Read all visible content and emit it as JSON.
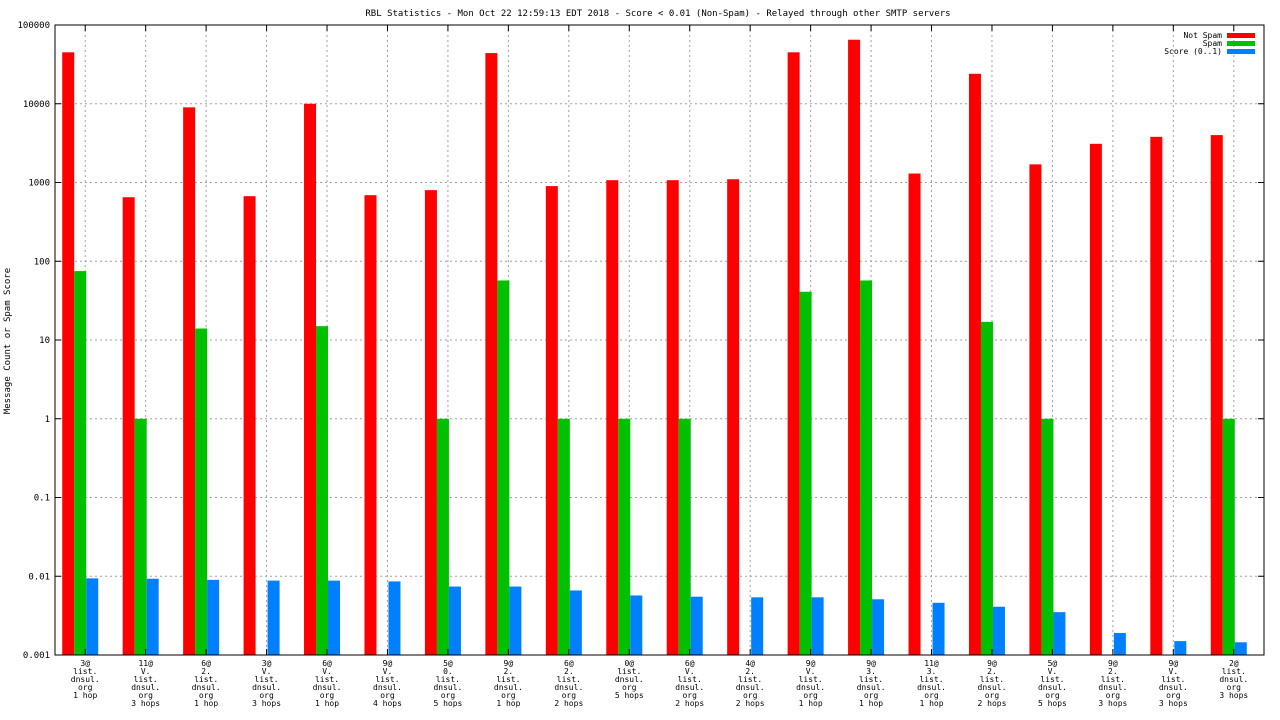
{
  "chart_data": {
    "type": "bar",
    "title": "RBL Statistics - Mon Oct 22 12:59:13 EDT 2018 - Score < 0.01 (Non-Spam) - Relayed through other SMTP servers",
    "xlabel": "",
    "ylabel": "Message Count or Spam Score",
    "y_scale": "log",
    "ylim": [
      0.001,
      100000
    ],
    "y_ticks": [
      "0.001",
      "0.01",
      "0.1",
      "1",
      "10",
      "100",
      "1000",
      "10000",
      "100000"
    ],
    "grid": true,
    "legend_position": "top-right",
    "categories": [
      [
        "3@",
        "list.",
        "dnsul.",
        "org",
        "1 hop"
      ],
      [
        "11@",
        "V.",
        "list.",
        "dnsul.",
        "org",
        "3 hops"
      ],
      [
        "6@",
        "2.",
        "list.",
        "dnsul.",
        "org",
        "1 hop"
      ],
      [
        "3@",
        "V.",
        "list.",
        "dnsul.",
        "org",
        "3 hops"
      ],
      [
        "6@",
        "V.",
        "list.",
        "dnsul.",
        "org",
        "1 hop"
      ],
      [
        "9@",
        "V.",
        "list.",
        "dnsul.",
        "org",
        "4 hops"
      ],
      [
        "5@",
        "0.",
        "list.",
        "dnsul.",
        "org",
        "5 hops"
      ],
      [
        "9@",
        "2.",
        "list.",
        "dnsul.",
        "org",
        "1 hop"
      ],
      [
        "6@",
        "2.",
        "list.",
        "dnsul.",
        "org",
        "2 hops"
      ],
      [
        "0@",
        "list.",
        "dnsul.",
        "org",
        "5 hops"
      ],
      [
        "6@",
        "V.",
        "list.",
        "dnsul.",
        "org",
        "2 hops"
      ],
      [
        "4@",
        "2.",
        "list.",
        "dnsul.",
        "org",
        "2 hops"
      ],
      [
        "9@",
        "V.",
        "list.",
        "dnsul.",
        "org",
        "1 hop"
      ],
      [
        "9@",
        "3.",
        "list.",
        "dnsul.",
        "org",
        "1 hop"
      ],
      [
        "11@",
        "3.",
        "list.",
        "dnsul.",
        "org",
        "1 hop"
      ],
      [
        "9@",
        "2.",
        "list.",
        "dnsul.",
        "org",
        "2 hops"
      ],
      [
        "5@",
        "V.",
        "list.",
        "dnsul.",
        "org",
        "5 hops"
      ],
      [
        "9@",
        "2.",
        "list.",
        "dnsul.",
        "org",
        "3 hops"
      ],
      [
        "9@",
        "V.",
        "list.",
        "dnsul.",
        "org",
        "3 hops"
      ],
      [
        "2@",
        "list.",
        "dnsul.",
        "org",
        "3 hops"
      ]
    ],
    "series": [
      {
        "name": "Not Spam",
        "color": "#ff0000",
        "values": [
          45000,
          650,
          9000,
          670,
          10000,
          690,
          800,
          44000,
          900,
          1070,
          1070,
          1100,
          45000,
          65000,
          1300,
          24000,
          1700,
          3100,
          3800,
          4000
        ]
      },
      {
        "name": "Spam",
        "color": "#00c000",
        "values": [
          75,
          1,
          14,
          null,
          15,
          null,
          1,
          57,
          1,
          1,
          1,
          null,
          41,
          57,
          null,
          17,
          1,
          null,
          null,
          1
        ]
      },
      {
        "name": "Score (0..1)",
        "color": "#0080ff",
        "values": [
          0.0094,
          0.0093,
          0.009,
          0.0088,
          0.0088,
          0.0086,
          0.0074,
          0.0074,
          0.0066,
          0.0057,
          0.0055,
          0.0054,
          0.0054,
          0.0051,
          0.0046,
          0.0041,
          0.0035,
          0.0019,
          0.0015,
          0.00145
        ]
      }
    ]
  }
}
